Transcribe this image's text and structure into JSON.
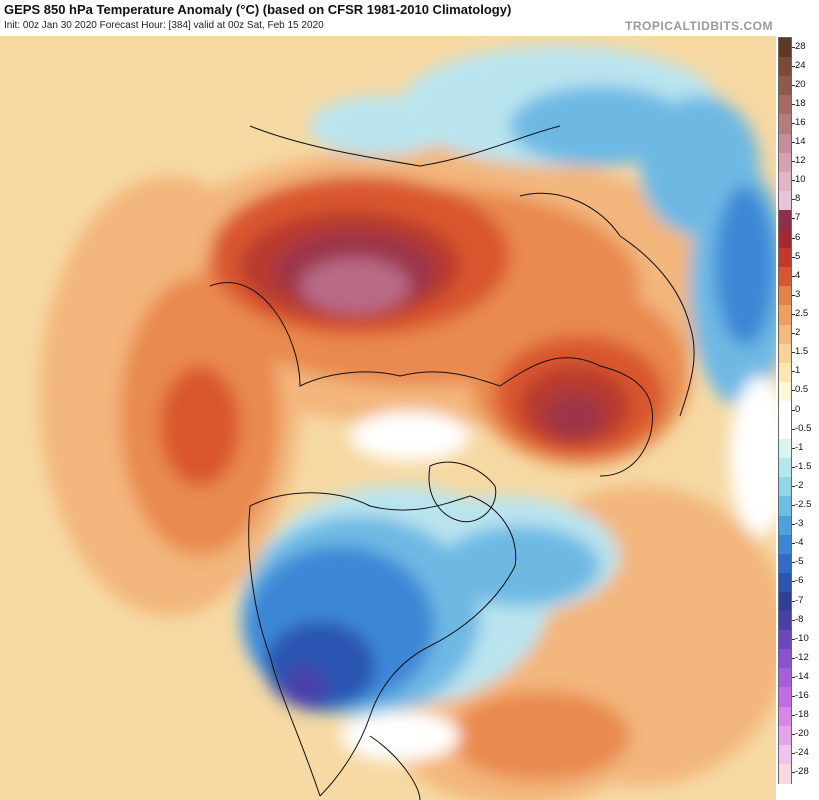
{
  "header": {
    "title": "GEPS 850 hPa Temperature Anomaly (°C) (based on CFSR 1981-2010 Climatology)",
    "subtitle": "Init: 00z Jan 30 2020   Forecast Hour: [384]   valid at 00z Sat, Feb 15 2020",
    "brand": "TROPICALTIDBITS.COM"
  },
  "colorbar": {
    "labels": [
      "28",
      "24",
      "20",
      "18",
      "16",
      "14",
      "12",
      "10",
      "8",
      "7",
      "6",
      "5",
      "4",
      "3",
      "2.5",
      "2",
      "1.5",
      "1",
      "0.5",
      "0",
      "-0.5",
      "-1",
      "-1.5",
      "-2",
      "-2.5",
      "-3",
      "-4",
      "-5",
      "-6",
      "-7",
      "-8",
      "-10",
      "-12",
      "-14",
      "-16",
      "-18",
      "-20",
      "-24",
      "-28"
    ],
    "colors": [
      "#5e3a24",
      "#7a4a34",
      "#8f5a4a",
      "#a56a62",
      "#b57b7d",
      "#c68c9a",
      "#d6a0b3",
      "#e2b4c8",
      "#e6c3d6",
      "#8e2f4c",
      "#a32a32",
      "#c03a2a",
      "#d7582e",
      "#e58244",
      "#ef9f5f",
      "#f5b97a",
      "#f9d295",
      "#fce7b0",
      "#fef6d8",
      "#ffffff",
      "#ffffff",
      "#d9f3f3",
      "#b4e6ee",
      "#8fd6ea",
      "#6bbde4",
      "#4ea1df",
      "#3b86d6",
      "#2f6bc8",
      "#2a55b2",
      "#2d3f9b",
      "#4a3fa8",
      "#6a48c0",
      "#8a52d2",
      "#a85ddf",
      "#c46ae6",
      "#d984e8",
      "#e7a3ec",
      "#f2c2ef",
      "#f7d9e0"
    ]
  },
  "map": {
    "colors": {
      "ocean_warm": "#f6d9a3",
      "warm1": "#f3b67b",
      "warm2": "#e98a4f",
      "warm3": "#d9572d",
      "warm4": "#b83a2e",
      "warm5": "#9c3548",
      "hot": "#b86a86",
      "cold1": "#b9e4ef",
      "cold2": "#6db9e4",
      "cold3": "#3d87d6",
      "cold4": "#2a55b2",
      "cold5": "#4a3fa8",
      "white": "#ffffff",
      "coast": "#111111"
    }
  }
}
